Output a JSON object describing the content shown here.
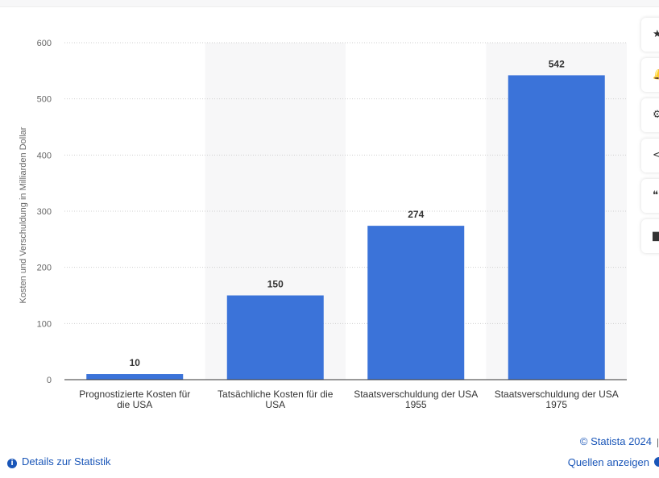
{
  "chart_data": {
    "type": "bar",
    "categories": [
      [
        "Prognostizierte Kosten für",
        "die USA"
      ],
      [
        "Tatsächliche Kosten für die",
        "USA"
      ],
      [
        "Staatsverschuldung der USA",
        "1955"
      ],
      [
        "Staatsverschuldung der USA",
        "1975"
      ]
    ],
    "values": [
      10,
      150,
      274,
      542
    ],
    "data_labels": [
      "10",
      "150",
      "274",
      "542"
    ],
    "ylabel": "Kosten und Verschuldung in Milliarden Dollar",
    "ylim": [
      0,
      600
    ],
    "yticks": [
      0,
      100,
      200,
      300,
      400,
      500,
      600
    ],
    "grid": true,
    "bar_color": "#3b73d9",
    "alt_band_color": "#f7f7f8"
  },
  "sidebar": {
    "buttons": [
      {
        "icon": "star-icon",
        "glyph": "★"
      },
      {
        "icon": "bell-icon",
        "glyph": "🔔"
      },
      {
        "icon": "gear-icon",
        "glyph": "⚙"
      },
      {
        "icon": "share-icon",
        "glyph": "<"
      },
      {
        "icon": "quote-icon",
        "glyph": "❝"
      },
      {
        "icon": "print-icon",
        "glyph": "▆"
      }
    ]
  },
  "footer": {
    "copyright": "© Statista 2024",
    "sources_link": "Quellen anzeigen",
    "details_link": "Details zur Statistik",
    "details_icon": "i"
  }
}
